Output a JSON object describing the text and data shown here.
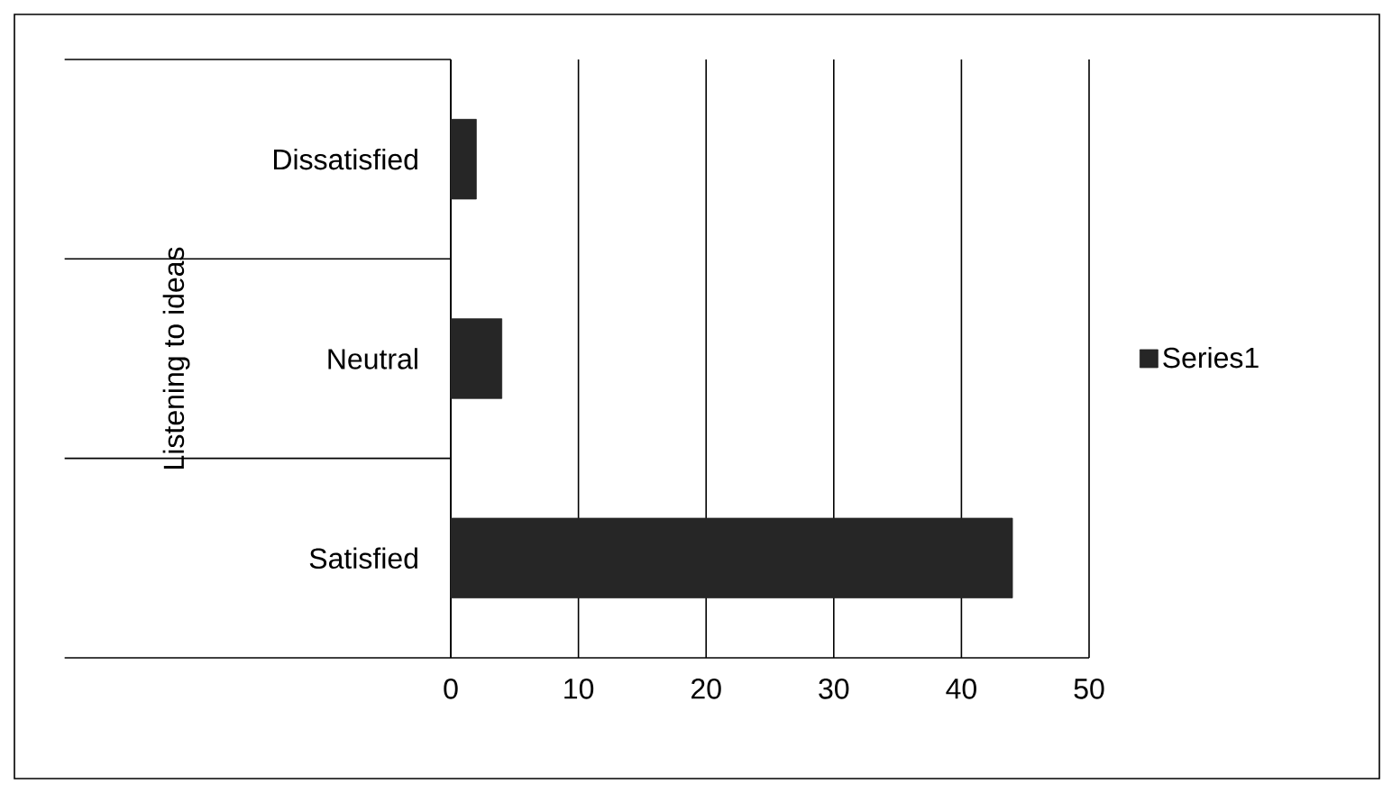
{
  "chart_data": {
    "type": "bar",
    "orientation": "horizontal",
    "ylabel": "Listening to ideas",
    "categories": [
      "Dissatisfied",
      "Neutral",
      "Satisfied"
    ],
    "series": [
      {
        "name": "Series1",
        "color": "#262626",
        "values": [
          2,
          4,
          44
        ]
      }
    ],
    "xlim": [
      0,
      50
    ],
    "xticks": [
      0,
      10,
      20,
      30,
      40,
      50
    ],
    "grid": "x",
    "legend": "right"
  }
}
